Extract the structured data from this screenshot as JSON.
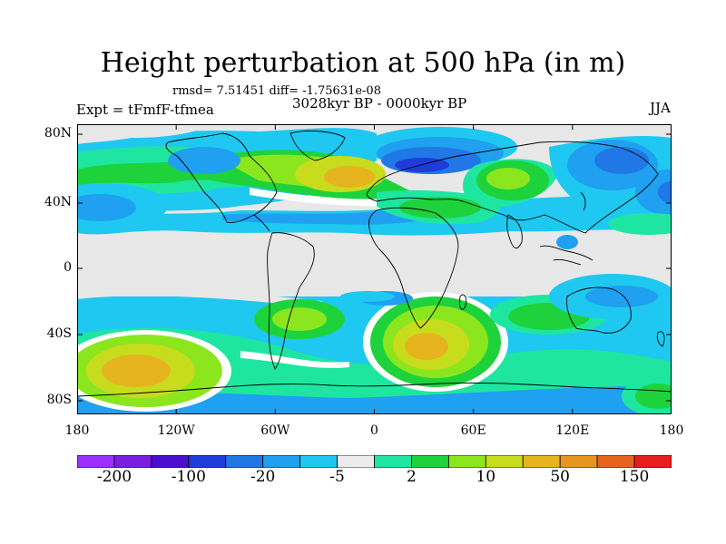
{
  "title": "Height perturbation at 500 hPa (in m)",
  "stats": "rmsd= 7.51451 diff= -1.75631e-08",
  "expt": "Expt = tFmfF-tfmea",
  "subtitle": "3028kyr BP - 0000kyr BP",
  "season": "JJA",
  "lat_labels": [
    "80N",
    "40N",
    "0",
    "40S",
    "80S"
  ],
  "lon_labels": [
    "180",
    "120W",
    "60W",
    "0",
    "60E",
    "120E",
    "180"
  ],
  "colorbar": {
    "colors": [
      "#9b30ff",
      "#7a1fe0",
      "#4b0fd0",
      "#1e3cd8",
      "#1f78e6",
      "#1fa0f0",
      "#1fc8f0",
      "#ececec",
      "#1ee6a0",
      "#1ed23c",
      "#8ce61e",
      "#c8dc1e",
      "#e6b41e",
      "#e6961e",
      "#e6641e",
      "#e61e1e"
    ],
    "labels": [
      "-200",
      "-100",
      "-20",
      "-5",
      "2",
      "10",
      "50",
      "150"
    ],
    "label_boundary_index": [
      1,
      3,
      5,
      7,
      9,
      11,
      13,
      15
    ]
  },
  "map_colors": {
    "background": "#e8e8e8",
    "light_blue": "#1fc8f0",
    "mid_blue": "#1f78e6",
    "dark_blue": "#1e3cd8",
    "teal": "#1ee6a0",
    "green": "#1ed23c",
    "yellow_green": "#c8dc1e",
    "orange": "#e6b41e"
  }
}
